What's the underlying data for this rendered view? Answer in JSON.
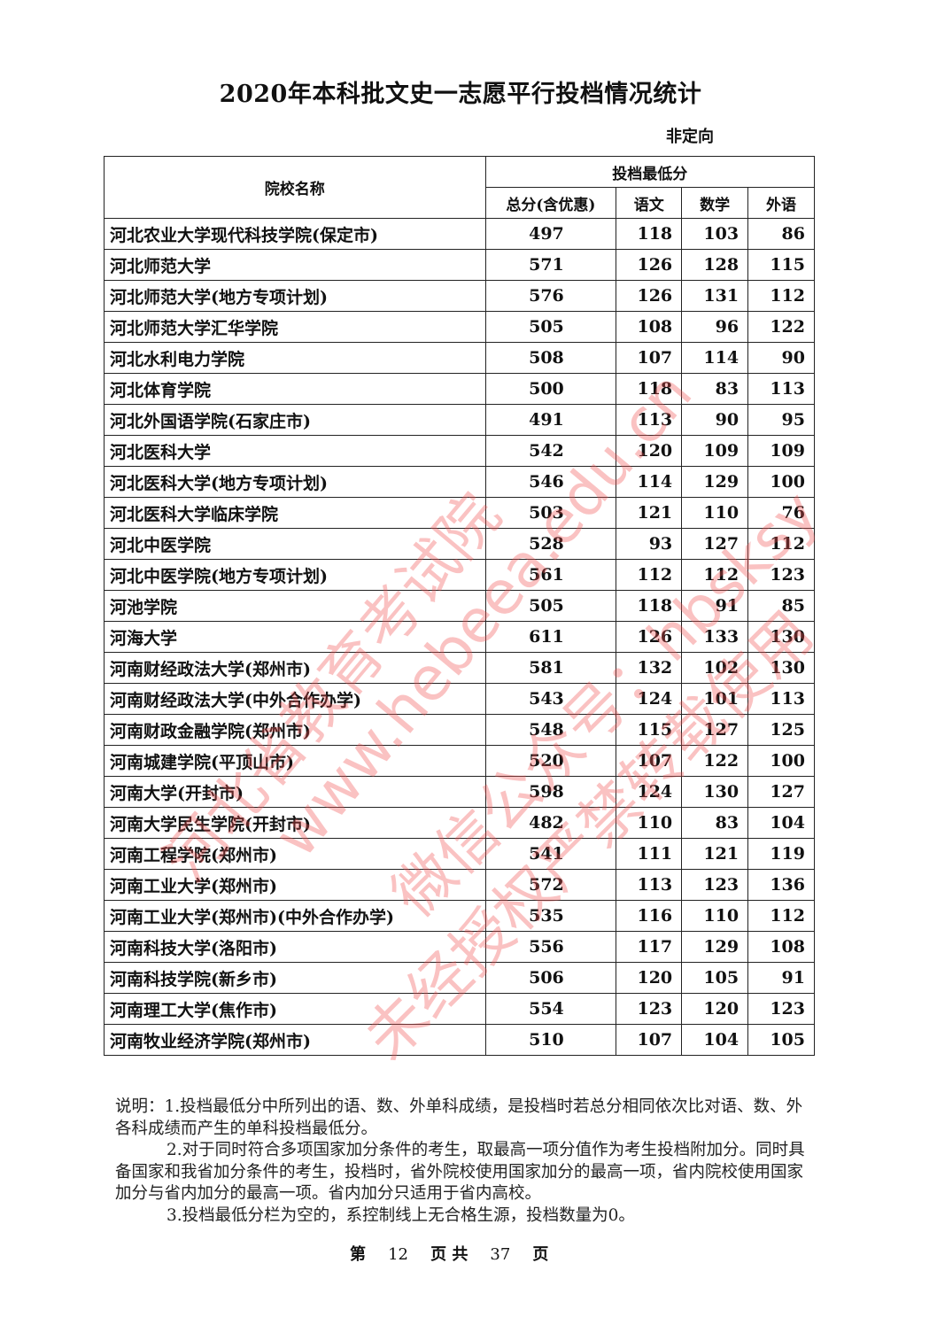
{
  "title": "2020年本科批文史一志愿平行投档情况统计",
  "subtitle": "非定向",
  "table": {
    "headers": {
      "name": "院校名称",
      "group": "投档最低分",
      "total": "总分(含优惠)",
      "chinese": "语文",
      "math": "数学",
      "foreign": "外语"
    },
    "rows": [
      {
        "name": "河北农业大学现代科技学院(保定市)",
        "total": "497",
        "chinese": "118",
        "math": "103",
        "foreign": "86"
      },
      {
        "name": "河北师范大学",
        "total": "571",
        "chinese": "126",
        "math": "128",
        "foreign": "115"
      },
      {
        "name": "河北师范大学(地方专项计划)",
        "total": "576",
        "chinese": "126",
        "math": "131",
        "foreign": "112"
      },
      {
        "name": "河北师范大学汇华学院",
        "total": "505",
        "chinese": "108",
        "math": "96",
        "foreign": "122"
      },
      {
        "name": "河北水利电力学院",
        "total": "508",
        "chinese": "107",
        "math": "114",
        "foreign": "90"
      },
      {
        "name": "河北体育学院",
        "total": "500",
        "chinese": "118",
        "math": "83",
        "foreign": "113"
      },
      {
        "name": "河北外国语学院(石家庄市)",
        "total": "491",
        "chinese": "113",
        "math": "90",
        "foreign": "95"
      },
      {
        "name": "河北医科大学",
        "total": "542",
        "chinese": "120",
        "math": "109",
        "foreign": "109"
      },
      {
        "name": "河北医科大学(地方专项计划)",
        "total": "546",
        "chinese": "114",
        "math": "129",
        "foreign": "100"
      },
      {
        "name": "河北医科大学临床学院",
        "total": "503",
        "chinese": "121",
        "math": "110",
        "foreign": "76"
      },
      {
        "name": "河北中医学院",
        "total": "528",
        "chinese": "93",
        "math": "127",
        "foreign": "112"
      },
      {
        "name": "河北中医学院(地方专项计划)",
        "total": "561",
        "chinese": "112",
        "math": "112",
        "foreign": "123"
      },
      {
        "name": "河池学院",
        "total": "505",
        "chinese": "118",
        "math": "91",
        "foreign": "85"
      },
      {
        "name": "河海大学",
        "total": "611",
        "chinese": "126",
        "math": "133",
        "foreign": "130"
      },
      {
        "name": "河南财经政法大学(郑州市)",
        "total": "581",
        "chinese": "132",
        "math": "102",
        "foreign": "130"
      },
      {
        "name": "河南财经政法大学(中外合作办学)",
        "total": "543",
        "chinese": "124",
        "math": "101",
        "foreign": "113"
      },
      {
        "name": "河南财政金融学院(郑州市)",
        "total": "548",
        "chinese": "115",
        "math": "127",
        "foreign": "125"
      },
      {
        "name": "河南城建学院(平顶山市)",
        "total": "520",
        "chinese": "107",
        "math": "122",
        "foreign": "100"
      },
      {
        "name": "河南大学(开封市)",
        "total": "598",
        "chinese": "124",
        "math": "130",
        "foreign": "127"
      },
      {
        "name": "河南大学民生学院(开封市)",
        "total": "482",
        "chinese": "110",
        "math": "83",
        "foreign": "104"
      },
      {
        "name": "河南工程学院(郑州市)",
        "total": "541",
        "chinese": "111",
        "math": "121",
        "foreign": "119"
      },
      {
        "name": "河南工业大学(郑州市)",
        "total": "572",
        "chinese": "113",
        "math": "123",
        "foreign": "136"
      },
      {
        "name": "河南工业大学(郑州市)(中外合作办学)",
        "total": "535",
        "chinese": "116",
        "math": "110",
        "foreign": "112"
      },
      {
        "name": "河南科技大学(洛阳市)",
        "total": "556",
        "chinese": "117",
        "math": "129",
        "foreign": "108"
      },
      {
        "name": "河南科技学院(新乡市)",
        "total": "506",
        "chinese": "120",
        "math": "105",
        "foreign": "91"
      },
      {
        "name": "河南理工大学(焦作市)",
        "total": "554",
        "chinese": "123",
        "math": "120",
        "foreign": "123"
      },
      {
        "name": "河南牧业经济学院(郑州市)",
        "total": "510",
        "chinese": "107",
        "math": "104",
        "foreign": "105"
      }
    ]
  },
  "notes": {
    "n1": "说明：1.投档最低分中所列出的语、数、外单科成绩，是投档时若总分相同依次比对语、数、外各科成绩而产生的单科投档最低分。",
    "n2": "2.对于同时符合多项国家加分条件的考生，取最高一项分值作为考生投档附加分。同时具备国家和我省加分条件的考生，投档时，省外院校使用国家加分的最高一项，省内院校使用国家加分与省内加分的最高一项。省内加分只适用于省内高校。",
    "n3": "3.投档最低分栏为空的，系控制线上无合格生源，投档数量为0。"
  },
  "footer": {
    "prefix": "第",
    "page": "12",
    "middle": "页 共",
    "total": "37",
    "suffix": "页"
  },
  "watermarks": [
    "河北省教育考试院",
    "www.hebeea.edu.cn",
    "微信公众号：hbsksy",
    "未经授权严禁转载使用"
  ],
  "watermark_color": "#f05050"
}
